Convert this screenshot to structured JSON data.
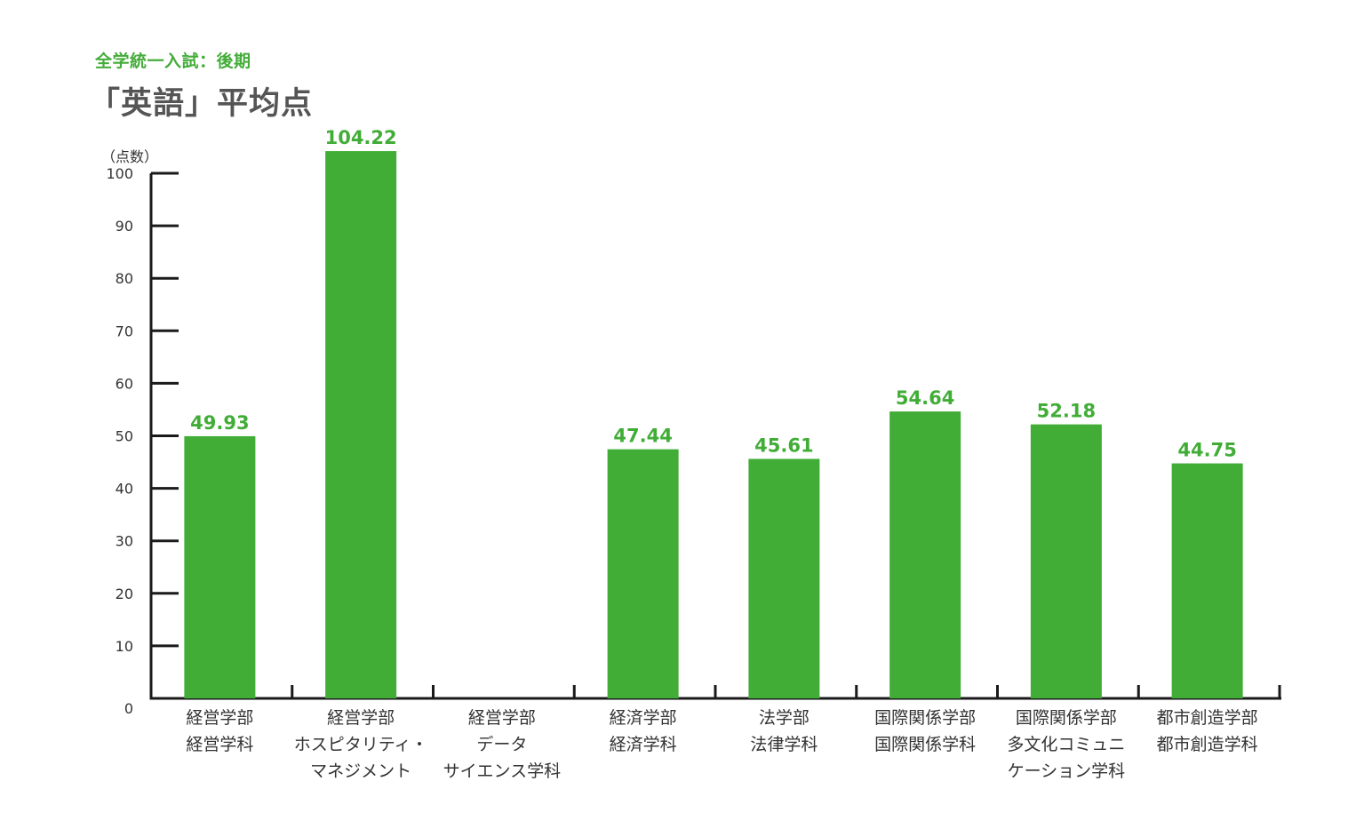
{
  "header": {
    "subtitle": "全学統一入試：後期",
    "title": "「英語」平均点"
  },
  "colors": {
    "bar": "#41ad37",
    "value_label": "#41ad37",
    "axis": "#1a1a1a",
    "text": "#333333"
  },
  "chart_data": {
    "type": "bar",
    "title": "「英語」平均点",
    "subtitle": "全学統一入試：後期",
    "ylabel": "（点数）",
    "xlabel": "",
    "ylim": [
      0,
      100
    ],
    "yticks": [
      0,
      10,
      20,
      30,
      40,
      50,
      60,
      70,
      80,
      90,
      100
    ],
    "grid": false,
    "categories": [
      [
        "経営学部",
        "経営学科"
      ],
      [
        "経営学部",
        "ホスピタリティ・",
        "マネジメント"
      ],
      [
        "経営学部",
        "データ",
        "サイエンス学科"
      ],
      [
        "経済学部",
        "経済学科"
      ],
      [
        "法学部",
        "法律学科"
      ],
      [
        "国際関係学部",
        "国際関係学科"
      ],
      [
        "国際関係学部",
        "多文化コミュニ",
        "ケーション学科"
      ],
      [
        "都市創造学部",
        "都市創造学科"
      ]
    ],
    "values": [
      49.93,
      104.22,
      null,
      47.44,
      45.61,
      54.64,
      52.18,
      44.75
    ],
    "value_labels": [
      "49.93",
      "104.22",
      "",
      "47.44",
      "45.61",
      "54.64",
      "52.18",
      "44.75"
    ]
  }
}
